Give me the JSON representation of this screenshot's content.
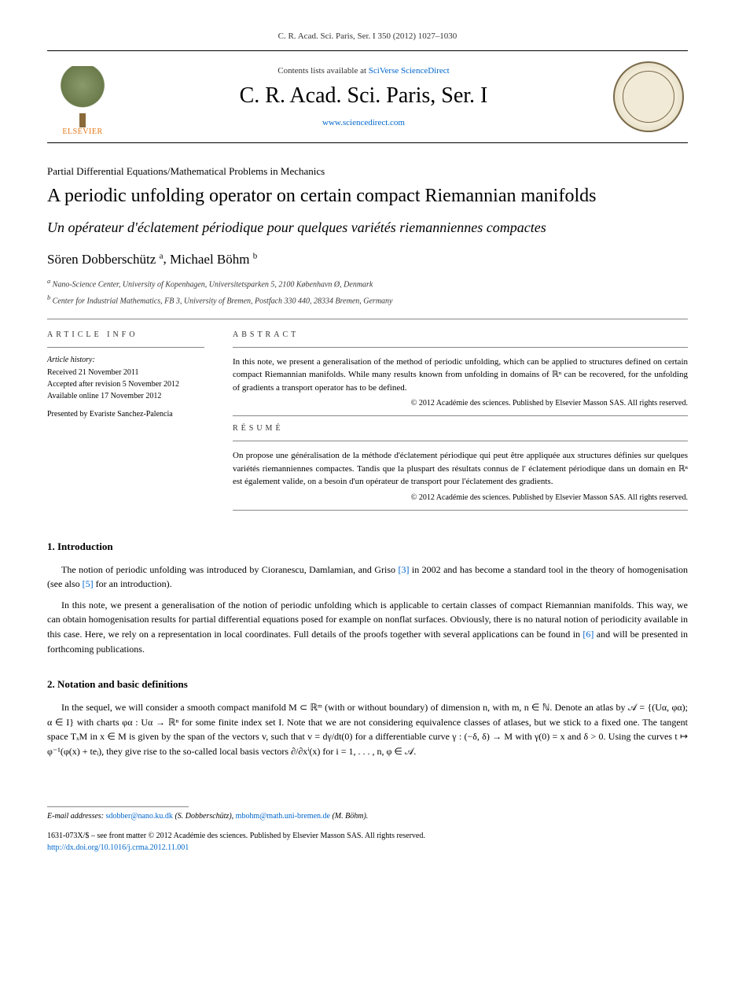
{
  "topline": "C. R. Acad. Sci. Paris, Ser. I 350 (2012) 1027–1030",
  "masthead": {
    "contents_prefix": "Contents lists available at ",
    "contents_link": "SciVerse ScienceDirect",
    "journal_name": "C. R. Acad. Sci. Paris, Ser. I",
    "sd_url": "www.sciencedirect.com",
    "publisher": "ELSEVIER"
  },
  "section_label": "Partial Differential Equations/Mathematical Problems in Mechanics",
  "title_en": "A periodic unfolding operator on certain compact Riemannian manifolds",
  "title_fr": "Un opérateur d'éclatement périodique pour quelques variétés riemanniennes compactes",
  "authors": [
    {
      "name": "Sören Dobberschütz",
      "marker": "a"
    },
    {
      "name": "Michael Böhm",
      "marker": "b"
    }
  ],
  "affiliations": [
    {
      "marker": "a",
      "text": "Nano-Science Center, University of Kopenhagen, Universitetsparken 5, 2100 København Ø, Denmark"
    },
    {
      "marker": "b",
      "text": "Center for Industrial Mathematics, FB 3, University of Bremen, Postfach 330 440, 28334 Bremen, Germany"
    }
  ],
  "article_info": {
    "heading": "ARTICLE INFO",
    "history_label": "Article history:",
    "received": "Received 21 November 2011",
    "accepted": "Accepted after revision 5 November 2012",
    "online": "Available online 17 November 2012",
    "presented": "Presented by Evariste Sanchez-Palencia"
  },
  "abstract": {
    "heading": "ABSTRACT",
    "text": "In this note, we present a generalisation of the method of periodic unfolding, which can be applied to structures defined on certain compact Riemannian manifolds. While many results known from unfolding in domains of ℝⁿ can be recovered, for the unfolding of gradients a transport operator has to be defined.",
    "copyright": "© 2012 Académie des sciences. Published by Elsevier Masson SAS. All rights reserved."
  },
  "resume": {
    "heading": "RÉSUMÉ",
    "text": "On propose une généralisation de la méthode d'éclatement périodique qui peut être appliquée aux structures définies sur quelques variétés riemanniennes compactes. Tandis que la pluspart des résultats connus de l' éclatement périodique dans un domain en ℝⁿ est également valide, on a besoin d'un opérateur de transport pour l'éclatement des gradients.",
    "copyright": "© 2012 Académie des sciences. Published by Elsevier Masson SAS. All rights reserved."
  },
  "sections": {
    "intro": {
      "heading": "1. Introduction",
      "p1_a": "The notion of periodic unfolding was introduced by Cioranescu, Damlamian, and Griso ",
      "p1_ref1": "[3]",
      "p1_b": " in 2002 and has become a standard tool in the theory of homogenisation (see also ",
      "p1_ref2": "[5]",
      "p1_c": " for an introduction).",
      "p2_a": "In this note, we present a generalisation of the notion of periodic unfolding which is applicable to certain classes of compact Riemannian manifolds. This way, we can obtain homogenisation results for partial differential equations posed for example on nonflat surfaces. Obviously, there is no natural notion of periodicity available in this case. Here, we rely on a representation in local coordinates. Full details of the proofs together with several applications can be found in ",
      "p2_ref": "[6]",
      "p2_b": " and will be presented in forthcoming publications."
    },
    "notation": {
      "heading": "2. Notation and basic definitions",
      "p1": "In the sequel, we will consider a smooth compact manifold M ⊂ ℝᵐ (with or without boundary) of dimension n, with m, n ∈ ℕ. Denote an atlas by 𝒜 = {(Uα, φα); α ∈ I} with charts φα : Uα → ℝⁿ for some finite index set I. Note that we are not considering equivalence classes of atlases, but we stick to a fixed one. The tangent space TₓM in x ∈ M is given by the span of the vectors v, such that v = dγ/dt(0) for a differentiable curve γ : (−δ, δ) → M with γ(0) = x and δ > 0. Using the curves t ↦ φ⁻¹(φ(x) + teᵢ), they give rise to the so-called local basis vectors ∂/∂xⁱ(x) for i = 1, . . . , n, φ ∈ 𝒜."
    }
  },
  "footer": {
    "email_label": "E-mail addresses:",
    "emails": [
      {
        "address": "sdobber@nano.ku.dk",
        "name": "(S. Dobberschütz)"
      },
      {
        "address": "mbohm@math.uni-bremen.de",
        "name": "(M. Böhm)"
      }
    ],
    "issn_line": "1631-073X/$ – see front matter © 2012 Académie des sciences. Published by Elsevier Masson SAS. All rights reserved.",
    "doi": "http://dx.doi.org/10.1016/j.crma.2012.11.001"
  },
  "colors": {
    "link": "#0066cc",
    "text": "#000000",
    "rule": "#888888",
    "elsevier_orange": "#e67817"
  },
  "typography": {
    "body_font": "Georgia serif",
    "journal_name_size": 28,
    "title_en_size": 24,
    "title_fr_size": 18,
    "authors_size": 17,
    "body_size": 12,
    "small_size": 10
  }
}
